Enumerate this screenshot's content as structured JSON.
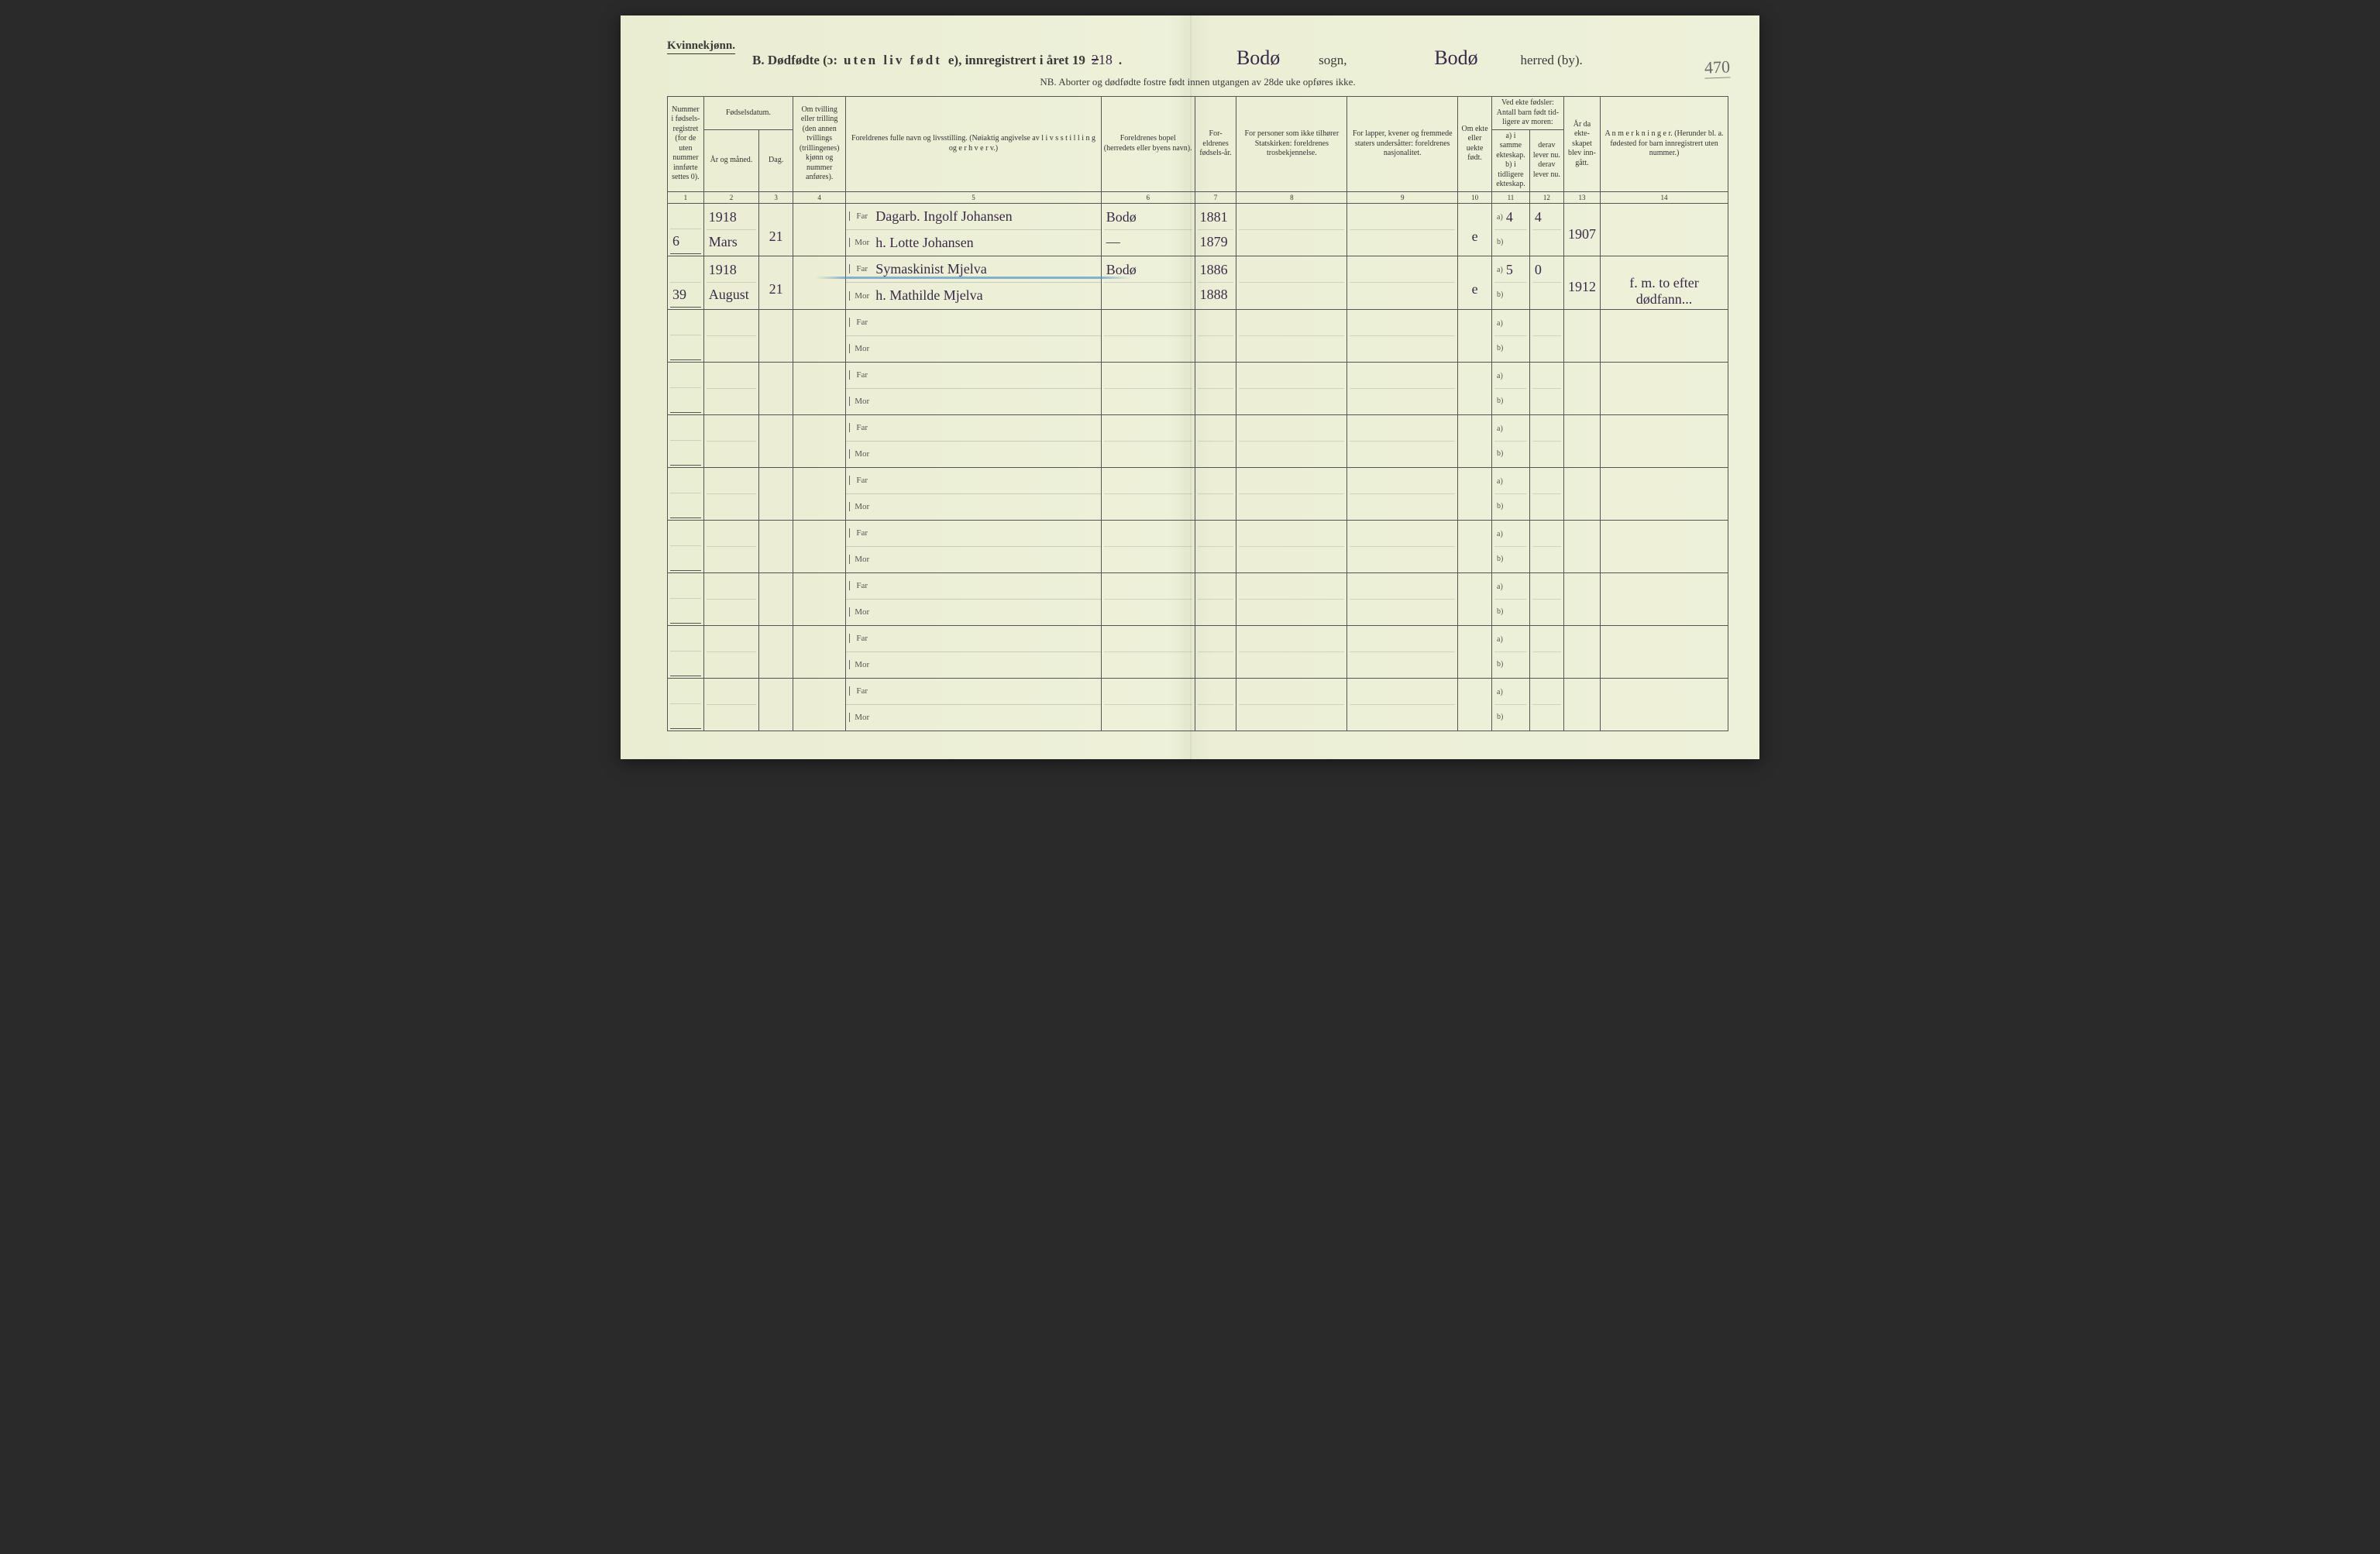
{
  "colors": {
    "paper": "#eef0d8",
    "ink": "#3a3a3a",
    "handwriting": "#3a2a4a",
    "pencil": "#6a6a6a",
    "blue_stroke": "#5a96c8",
    "rule_line": "#555"
  },
  "typography": {
    "print_family": "Times New Roman, Georgia, serif",
    "script_family": "Brush Script MT, Segoe Script, cursive",
    "header_fontsize_pt": 12,
    "th_fontsize_pt": 7,
    "data_fontsize_pt": 10
  },
  "header": {
    "gender": "Kvinnekjønn.",
    "title_prefix": "B.  Dødfødte (ɔ:",
    "title_spaced": "uten liv født",
    "title_suffix": "e),  innregistrert i året 19",
    "year_printed": "2",
    "year_written": "18",
    "period": ".",
    "sogn_value": "Bodø",
    "sogn_label": "sogn,",
    "herred_value": "Bodø",
    "herred_label": "herred (by).",
    "nb": "NB.  Aborter og dødfødte fostre født innen utgangen av 28de uke opføres ikke.",
    "page_annotation": "470"
  },
  "columns": {
    "c1": "Nummer i fødsels-registret (for de uten nummer innførte settes 0).",
    "c2_group": "Fødselsdatum.",
    "c2a": "År og måned.",
    "c2b": "Dag.",
    "c4": "Om tvilling eller trilling (den annen tvillings (trillingenes) kjønn og nummer anføres).",
    "c5": "Foreldrenes fulle navn og livsstilling. (Nøiaktig angivelse av l i v s s t i l l i n g  og e r h v e r v.)",
    "c6": "Foreldrenes bopel (herredets eller byens navn).",
    "c7": "For-eldrenes fødsels-år.",
    "c8": "For personer som ikke tilhører Statskirken: foreldrenes trosbekjennelse.",
    "c9": "For lapper, kvener og fremmede staters undersåtter: foreldrenes nasjonalitet.",
    "c10": "Om ekte eller uekte født.",
    "c11_group": "Ved ekte fødsler: Antall barn født tid-ligere av moren:",
    "c11a": "a) i samme ekteskap.",
    "c11b": "b) i tidligere ekteskap.",
    "c12a": "derav lever nu.",
    "c12b": "derav lever nu.",
    "c13": "År da ekte-skapet blev inn-gått.",
    "c14": "A n m e r k n i n g e r. (Herunder bl. a. fødested for barn innregistrert uten nummer.)"
  },
  "colnums": [
    "1",
    "2",
    "3",
    "4",
    "5",
    "6",
    "7",
    "8",
    "9",
    "10",
    "11",
    "12",
    "13",
    "14"
  ],
  "parent_labels": {
    "far": "Far",
    "mor": "Mor"
  },
  "ab_labels": {
    "a": "a)",
    "b": "b)"
  },
  "rows": [
    {
      "num": "6",
      "year": "1918",
      "month": "Mars",
      "day": "21",
      "twin": "",
      "far": "Dagarb. Ingolf Johansen",
      "mor": "h. Lotte Johansen",
      "bopel_far": "Bodø",
      "bopel_mor": "—",
      "fy_far": "1881",
      "fy_mor": "1879",
      "tros": "",
      "nasj": "",
      "ekte": "e",
      "c11a": "4",
      "c11b": "",
      "c12a": "4",
      "c12b": "",
      "c13": "1907",
      "anm": "",
      "blue": false
    },
    {
      "num": "39",
      "year": "1918",
      "month": "August",
      "day": "21",
      "twin": "",
      "far": "Symaskinist Mjelva",
      "mor": "h. Mathilde Mjelva",
      "bopel_far": "Bodø",
      "bopel_mor": "",
      "fy_far": "1886",
      "fy_mor": "1888",
      "tros": "",
      "nasj": "",
      "ekte": "e",
      "c11a": "5",
      "c11b": "",
      "c12a": "0",
      "c12b": "",
      "c13": "1912",
      "anm": "f. m. to efter dødfann...",
      "blue": true
    },
    {},
    {},
    {},
    {},
    {},
    {},
    {},
    {}
  ]
}
